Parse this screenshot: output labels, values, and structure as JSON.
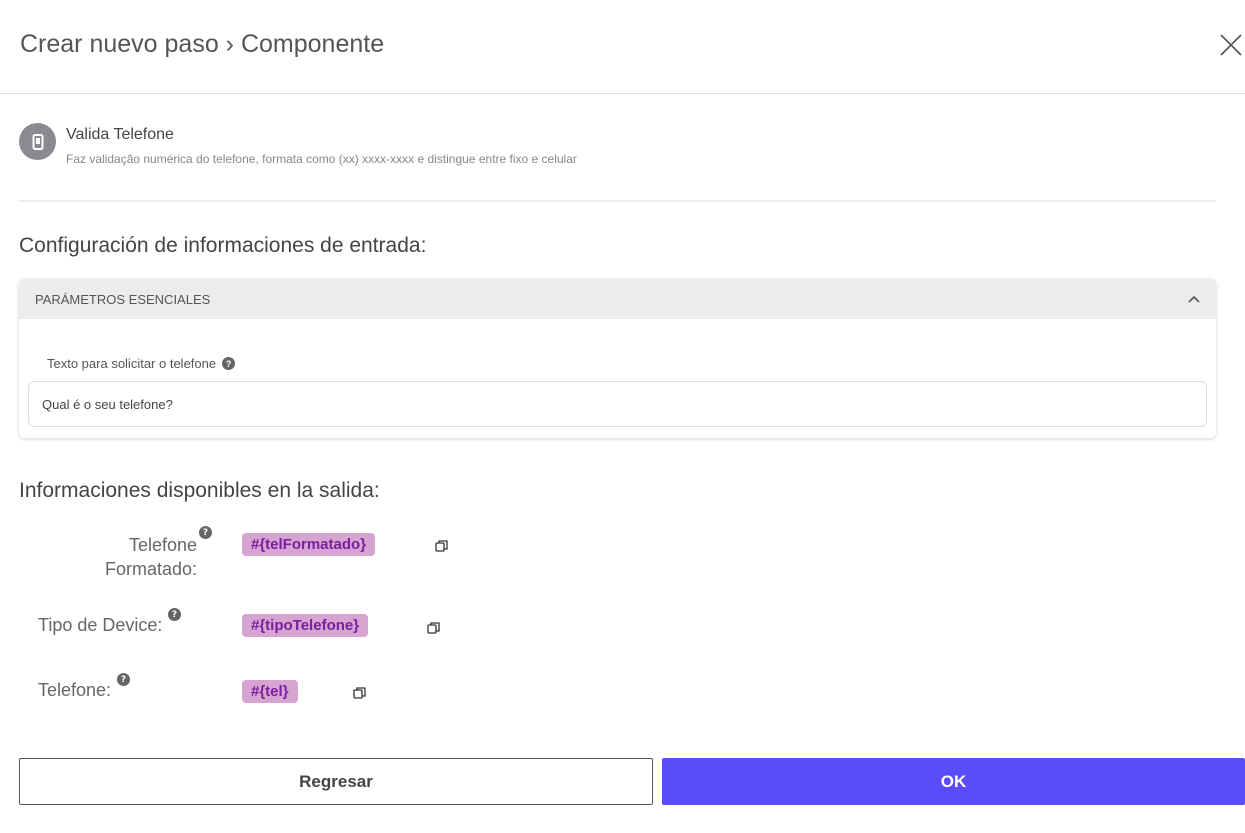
{
  "header": {
    "title": "Crear nuevo paso › Componente"
  },
  "component": {
    "name": "Valida Telefone",
    "description": "Faz validação numérica do telefone, formata como (xx) xxxx-xxxx e distingue entre fixo e celular",
    "icon": "mobile-phone-icon"
  },
  "input_section": {
    "title": "Configuración de informaciones de entrada:",
    "panel_title": "PARÁMETROS ESENCIALES",
    "field_label": "Texto para solicitar o telefone",
    "field_value": "Qual é o seu telefone?"
  },
  "output_section": {
    "title": "Informaciones disponibles en la salida:",
    "items": [
      {
        "label_line1": "Telefone",
        "label_line2": "Formatado:",
        "variable": "#{telFormatado}"
      },
      {
        "label": "Tipo de Device:",
        "variable": "#{tipoTelefone}"
      },
      {
        "label": "Telefone:",
        "variable": "#{tel}"
      }
    ]
  },
  "footer": {
    "back_label": "Regresar",
    "ok_label": "OK"
  },
  "colors": {
    "primary": "#5b4cfa",
    "tag_bg": "#d7a3d1",
    "tag_text": "#7a1fa0"
  }
}
